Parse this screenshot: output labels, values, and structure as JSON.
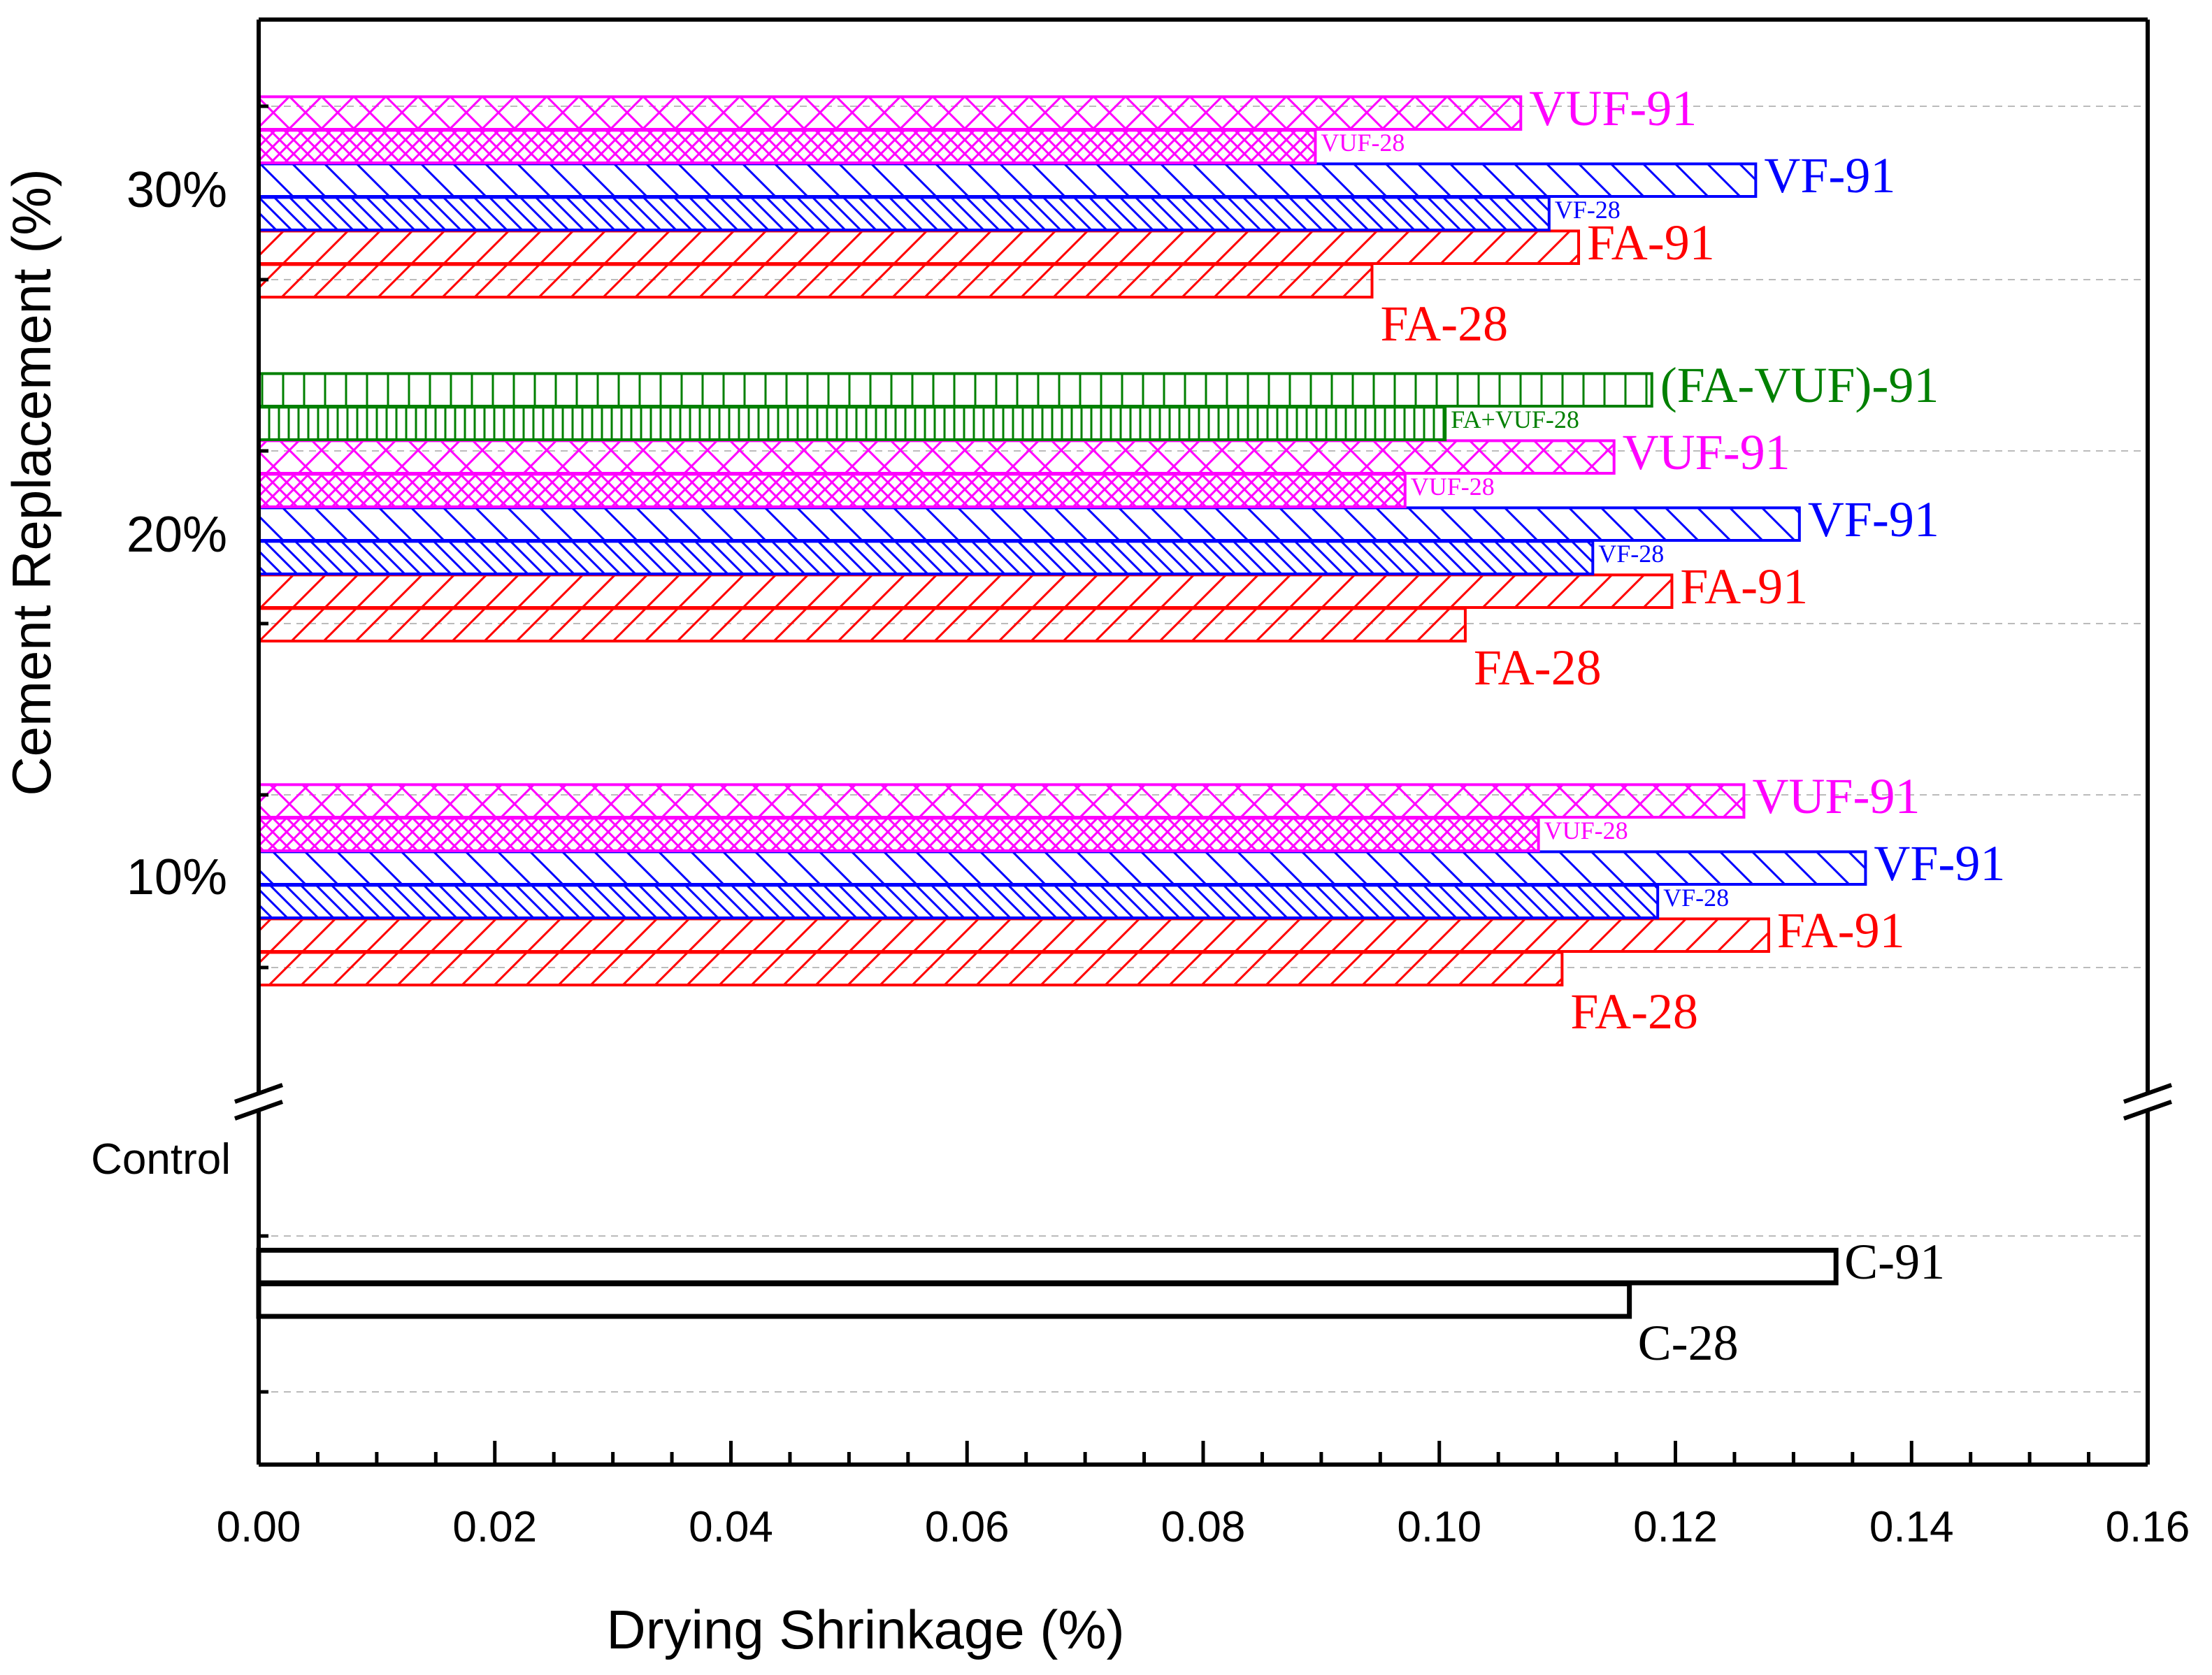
{
  "chart_data": {
    "type": "bar",
    "orientation": "horizontal",
    "xlabel": "Drying Shrinkage (%)",
    "ylabel": "Cement Replacement (%)",
    "xlim": [
      0,
      0.16
    ],
    "x_ticks": [
      "0.00",
      "0.02",
      "0.04",
      "0.06",
      "0.08",
      "0.10",
      "0.12",
      "0.14",
      "0.16"
    ],
    "y_axis_break": true,
    "grid": "dashed horizontal",
    "colors": {
      "FA": "#ff0000",
      "VF": "#0000ff",
      "VUF": "#ff00ff",
      "FA+VUF": "#008000",
      "C": "#000000"
    },
    "groups": [
      {
        "label": "30%",
        "bars": [
          {
            "label": "FA-28",
            "value": 0.0943,
            "color": "#ff0000",
            "pattern": "diag-right-sparse"
          },
          {
            "label": "FA-91",
            "value": 0.1118,
            "color": "#ff0000",
            "pattern": "diag-right-sparse"
          },
          {
            "label": "VF-28",
            "value": 0.1093,
            "color": "#0000ff",
            "pattern": "diag-left-dense"
          },
          {
            "label": "VF-91",
            "value": 0.1268,
            "color": "#0000ff",
            "pattern": "diag-left-sparse"
          },
          {
            "label": "VUF-28",
            "value": 0.0895,
            "color": "#ff00ff",
            "pattern": "cross-dense"
          },
          {
            "label": "VUF-91",
            "value": 0.1069,
            "color": "#ff00ff",
            "pattern": "cross-sparse"
          }
        ]
      },
      {
        "label": "20%",
        "bars": [
          {
            "label": "FA-28",
            "value": 0.1022,
            "color": "#ff0000",
            "pattern": "diag-right-sparse"
          },
          {
            "label": "FA-91",
            "value": 0.1197,
            "color": "#ff0000",
            "pattern": "diag-right-sparse"
          },
          {
            "label": "VF-28",
            "value": 0.113,
            "color": "#0000ff",
            "pattern": "diag-left-dense"
          },
          {
            "label": "VF-91",
            "value": 0.1305,
            "color": "#0000ff",
            "pattern": "diag-left-sparse"
          },
          {
            "label": "VUF-28",
            "value": 0.0971,
            "color": "#ff00ff",
            "pattern": "cross-dense"
          },
          {
            "label": "VUF-91",
            "value": 0.1148,
            "color": "#ff00ff",
            "pattern": "cross-sparse"
          },
          {
            "label": "FA+VUF-28",
            "value": 0.1005,
            "color": "#008000",
            "pattern": "vertical-dense"
          },
          {
            "label": "(FA-VUF)-91",
            "value": 0.118,
            "color": "#008000",
            "pattern": "vertical-sparse"
          }
        ]
      },
      {
        "label": "10%",
        "bars": [
          {
            "label": "FA-28",
            "value": 0.1104,
            "color": "#ff0000",
            "pattern": "diag-right-sparse"
          },
          {
            "label": "FA-91",
            "value": 0.1279,
            "color": "#ff0000",
            "pattern": "diag-right-sparse"
          },
          {
            "label": "VF-28",
            "value": 0.1185,
            "color": "#0000ff",
            "pattern": "diag-left-dense"
          },
          {
            "label": "VF-91",
            "value": 0.1361,
            "color": "#0000ff",
            "pattern": "diag-left-sparse"
          },
          {
            "label": "VUF-28",
            "value": 0.1084,
            "color": "#ff00ff",
            "pattern": "cross-dense"
          },
          {
            "label": "VUF-91",
            "value": 0.1258,
            "color": "#ff00ff",
            "pattern": "cross-sparse"
          }
        ]
      },
      {
        "label": "Control",
        "bars": [
          {
            "label": "C-28",
            "value": 0.1161,
            "color": "#000000",
            "pattern": "none"
          },
          {
            "label": "C-91",
            "value": 0.1336,
            "color": "#000000",
            "pattern": "none"
          }
        ]
      }
    ]
  }
}
